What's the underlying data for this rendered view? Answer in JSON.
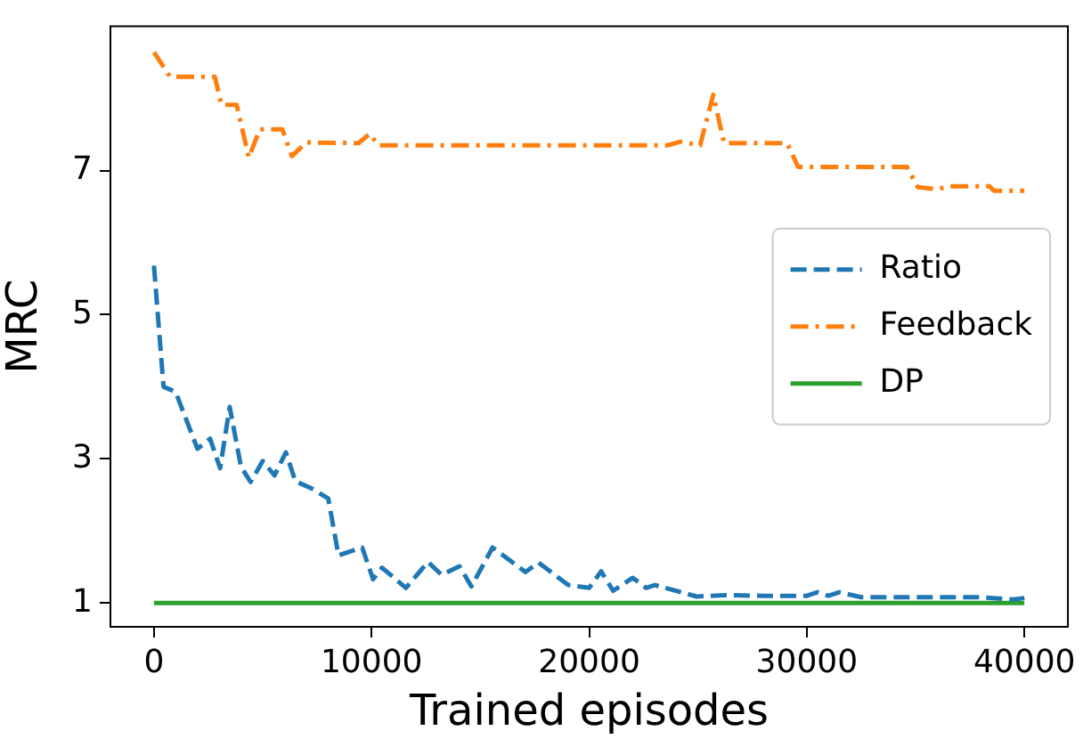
{
  "chart_data": {
    "type": "line",
    "xlabel": "Trained episodes",
    "ylabel": "MRC",
    "xlim": [
      -2000,
      42000
    ],
    "xticks": [
      0,
      10000,
      20000,
      30000,
      40000
    ],
    "ylim": [
      0.67,
      9.0
    ],
    "yticks": [
      1,
      3,
      5,
      7
    ],
    "grid": false,
    "legend": "center right",
    "marker": "none",
    "series": [
      {
        "name": "Ratio",
        "color": "#1f77b4",
        "line_style": "dashed",
        "x": [
          0,
          440,
          990,
          2000,
          2580,
          3040,
          3480,
          4000,
          4440,
          5000,
          5540,
          6060,
          6500,
          7240,
          8010,
          8480,
          9570,
          10070,
          10480,
          11580,
          12590,
          13220,
          14040,
          14590,
          15560,
          17070,
          17670,
          19040,
          20000,
          20550,
          21100,
          22000,
          22610,
          23020,
          24940,
          26310,
          28000,
          30000,
          30500,
          31000,
          31500,
          32500,
          35000,
          38000,
          39500,
          40000
        ],
        "values": [
          5.68,
          4.0,
          3.93,
          3.14,
          3.28,
          2.87,
          3.72,
          2.89,
          2.68,
          2.97,
          2.77,
          3.09,
          2.69,
          2.59,
          2.45,
          1.66,
          1.77,
          1.33,
          1.49,
          1.21,
          1.57,
          1.39,
          1.51,
          1.23,
          1.77,
          1.43,
          1.56,
          1.25,
          1.21,
          1.44,
          1.17,
          1.35,
          1.21,
          1.25,
          1.09,
          1.11,
          1.1,
          1.1,
          1.15,
          1.1,
          1.15,
          1.08,
          1.08,
          1.08,
          1.05,
          1.07
        ]
      },
      {
        "name": "Feedback",
        "color": "#ff7f0e",
        "line_style": "dashdot",
        "x": [
          0,
          740,
          2800,
          3100,
          3800,
          4360,
          4860,
          5900,
          6340,
          7000,
          9400,
          9920,
          10300,
          23600,
          24200,
          25100,
          25700,
          26200,
          29100,
          29600,
          34600,
          35100,
          36000,
          36500,
          38400,
          38600,
          40000
        ],
        "values": [
          8.64,
          8.3,
          8.3,
          7.91,
          7.91,
          7.18,
          7.57,
          7.57,
          7.2,
          7.39,
          7.38,
          7.51,
          7.35,
          7.35,
          7.4,
          7.35,
          8.05,
          7.38,
          7.38,
          7.05,
          7.05,
          6.77,
          6.74,
          6.78,
          6.78,
          6.72,
          6.72
        ]
      },
      {
        "name": "DP",
        "color": "#2ca02c",
        "line_style": "solid",
        "x": [
          0,
          40000
        ],
        "values": [
          1,
          1
        ]
      }
    ]
  }
}
